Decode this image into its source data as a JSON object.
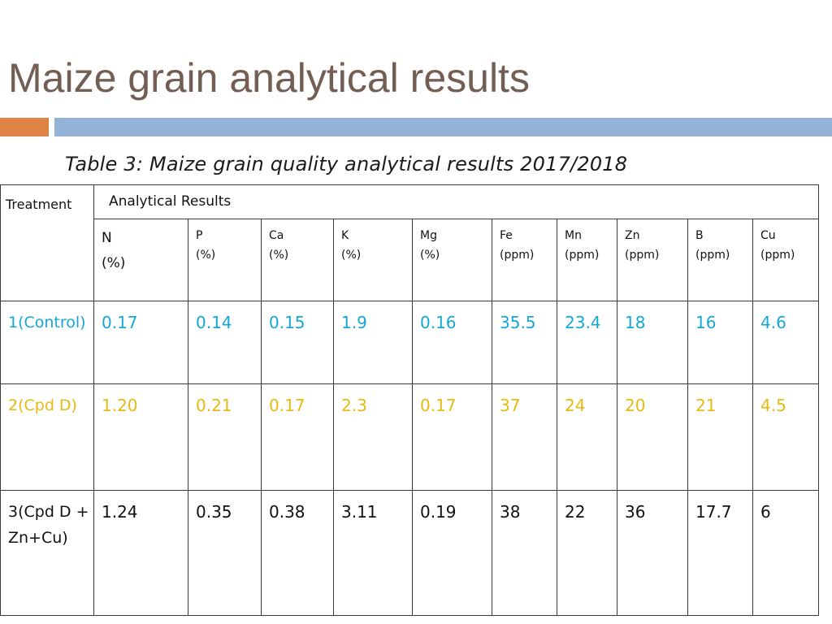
{
  "slide": {
    "title": "Maize grain analytical results",
    "caption": "Table 3: Maize grain quality analytical results 2017/2018"
  },
  "colors": {
    "title": "#735e53",
    "accent_orange": "#df8344",
    "accent_blue": "#95b3d7",
    "row_control": "#16a7d6",
    "row_cpd_d": "#e8b912",
    "row_cpd_d_zn_cu": "#111111"
  },
  "table": {
    "treatment_header": "Treatment",
    "group_header": "Analytical Results",
    "columns": [
      {
        "symbol": "N",
        "unit": "(%)"
      },
      {
        "symbol": "P",
        "unit": "(%)"
      },
      {
        "symbol": "Ca",
        "unit": "(%)"
      },
      {
        "symbol": "K",
        "unit": "(%)"
      },
      {
        "symbol": "Mg",
        "unit": "(%)"
      },
      {
        "symbol": "Fe",
        "unit": "(ppm)"
      },
      {
        "symbol": "Mn",
        "unit": "(ppm)"
      },
      {
        "symbol": "Zn",
        "unit": "(ppm)"
      },
      {
        "symbol": "B",
        "unit": "(ppm)"
      },
      {
        "symbol": "Cu",
        "unit": "(ppm)"
      }
    ],
    "rows": [
      {
        "treatment": "1(Control)",
        "values": [
          "0.17",
          "0.14",
          "0.15",
          "1.9",
          "0.16",
          "35.5",
          "23.4",
          "18",
          "16",
          "4.6"
        ]
      },
      {
        "treatment": "2(Cpd D)",
        "values": [
          "1.20",
          "0.21",
          "0.17",
          "2.3",
          "0.17",
          "37",
          "24",
          "20",
          "21",
          "4.5"
        ]
      },
      {
        "treatment": "3(Cpd D +Zn+Cu)",
        "values": [
          "1.24",
          "0.35",
          "0.38",
          "3.11",
          "0.19",
          "38",
          "22",
          "36",
          "17.7",
          "6"
        ]
      }
    ]
  }
}
